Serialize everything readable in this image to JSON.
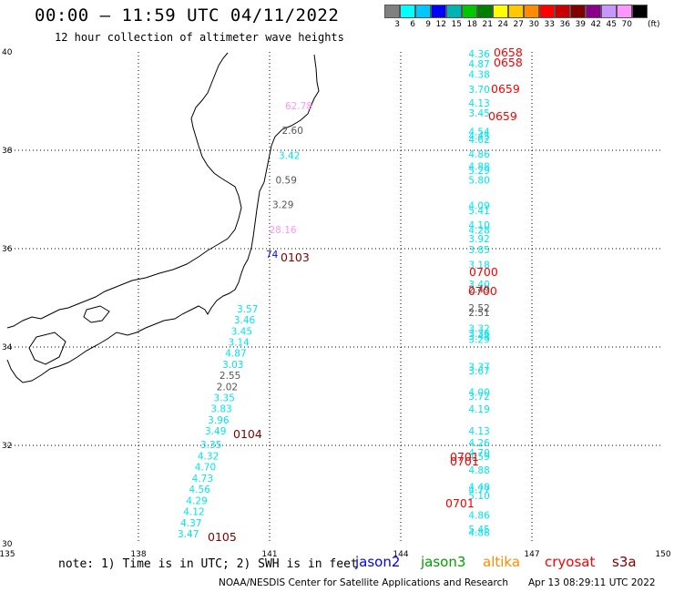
{
  "header": {
    "title": "00:00 – 11:59 UTC 04/11/2022",
    "subtitle": "12 hour collection of altimeter wave heights"
  },
  "color_scale": {
    "unit": "(ft)",
    "swatches": [
      "#808080",
      "#00ffff",
      "#00c8ff",
      "#0000ff",
      "#00b4b4",
      "#00c800",
      "#008000",
      "#ffff00",
      "#ffc800",
      "#ff8c00",
      "#ff0000",
      "#c80000",
      "#800000",
      "#8b008b",
      "#c896ff",
      "#ff96ff",
      "#000000"
    ],
    "labels": [
      "3",
      "6",
      "9",
      "12",
      "15",
      "18",
      "21",
      "24",
      "27",
      "30",
      "33",
      "36",
      "39",
      "42",
      "45",
      "70"
    ]
  },
  "axes": {
    "lon_labels": [
      "135",
      "138",
      "141",
      "144",
      "147",
      "150"
    ],
    "lat_labels": [
      "40",
      "38",
      "36",
      "34",
      "32",
      "30"
    ]
  },
  "tracks": [
    {
      "time": "0658",
      "color": "#ff0000",
      "points": [
        {
          "v": "4.36",
          "c": "#00e5ee",
          "lon": 144.3,
          "lat": 39.96
        },
        {
          "v": "4.87",
          "c": "#00e5ee",
          "lon": 144.3,
          "lat": 39.76
        },
        {
          "v": "4.38",
          "c": "#00e5ee",
          "lon": 144.3,
          "lat": 39.55
        }
      ]
    },
    {
      "time": "0658",
      "color": "#ff0000",
      "points": []
    },
    {
      "time": "0659",
      "color": "#ff0000",
      "points": [
        {
          "v": "3.70",
          "c": "#00e5ee",
          "lon": 144.3,
          "lat": 39.24
        },
        {
          "v": "4.13",
          "c": "#00e5ee",
          "lon": 144.3,
          "lat": 38.96
        },
        {
          "v": "3.45",
          "c": "#00e5ee",
          "lon": 144.3,
          "lat": 38.76
        }
      ]
    },
    {
      "time": "0659",
      "color": "#ff0000",
      "points": [
        {
          "v": "4.54",
          "c": "#00e5ee",
          "lon": 144.3,
          "lat": 38.38
        },
        {
          "v": "4.45",
          "c": "#00e5ee",
          "lon": 144.3,
          "lat": 38.3
        },
        {
          "v": "4.62",
          "c": "#00e5ee",
          "lon": 144.3,
          "lat": 38.22
        },
        {
          "v": "4.86",
          "c": "#00e5ee",
          "lon": 144.3,
          "lat": 37.93
        },
        {
          "v": "4.88",
          "c": "#00e5ee",
          "lon": 144.3,
          "lat": 37.68
        },
        {
          "v": "5.29",
          "c": "#00e5ee",
          "lon": 144.3,
          "lat": 37.59
        },
        {
          "v": "5.80",
          "c": "#00e5ee",
          "lon": 144.3,
          "lat": 37.4
        },
        {
          "v": "4.09",
          "c": "#00e5ee",
          "lon": 144.3,
          "lat": 36.88
        },
        {
          "v": "5.41",
          "c": "#00e5ee",
          "lon": 144.3,
          "lat": 36.78
        },
        {
          "v": "4.10",
          "c": "#00e5ee",
          "lon": 144.3,
          "lat": 36.48
        },
        {
          "v": "4.28",
          "c": "#00e5ee",
          "lon": 144.3,
          "lat": 36.38
        },
        {
          "v": "3.92",
          "c": "#00e5ee",
          "lon": 144.3,
          "lat": 36.2
        },
        {
          "v": "3.85",
          "c": "#00e5ee",
          "lon": 144.3,
          "lat": 35.98
        }
      ]
    },
    {
      "time": "0700",
      "color": "#ff0000",
      "points": [
        {
          "v": "3.18",
          "c": "#00e5ee",
          "lon": 144.3,
          "lat": 35.68
        }
      ]
    },
    {
      "time": "0700",
      "color": "#ff0000",
      "points": [
        {
          "v": "3.40",
          "c": "#00e5ee",
          "lon": 144.3,
          "lat": 35.28
        },
        {
          "v": "2.49",
          "c": "#555555",
          "lon": 144.3,
          "lat": 35.18
        },
        {
          "v": "2.52",
          "c": "#555555",
          "lon": 144.3,
          "lat": 34.8
        },
        {
          "v": "2.51",
          "c": "#555555",
          "lon": 144.3,
          "lat": 34.7
        },
        {
          "v": "3.32",
          "c": "#00e5ee",
          "lon": 144.3,
          "lat": 34.38
        },
        {
          "v": "3.36",
          "c": "#00e5ee",
          "lon": 144.3,
          "lat": 34.28
        },
        {
          "v": "3.44",
          "c": "#00e5ee",
          "lon": 144.3,
          "lat": 34.22
        },
        {
          "v": "3.29",
          "c": "#00e5ee",
          "lon": 144.3,
          "lat": 34.16
        },
        {
          "v": "3.37",
          "c": "#00e5ee",
          "lon": 144.3,
          "lat": 33.6
        },
        {
          "v": "3.67",
          "c": "#00e5ee",
          "lon": 144.3,
          "lat": 33.52
        },
        {
          "v": "4.00",
          "c": "#00e5ee",
          "lon": 144.3,
          "lat": 33.08
        },
        {
          "v": "3.72",
          "c": "#00e5ee",
          "lon": 144.3,
          "lat": 33.0
        },
        {
          "v": "4.19",
          "c": "#00e5ee",
          "lon": 144.3,
          "lat": 32.74
        },
        {
          "v": "4.13",
          "c": "#00e5ee",
          "lon": 144.3,
          "lat": 32.3
        },
        {
          "v": "4.26",
          "c": "#00e5ee",
          "lon": 144.3,
          "lat": 32.06
        }
      ]
    },
    {
      "time": "0701",
      "color": "#ff0000",
      "points": [
        {
          "v": "4.70",
          "c": "#00e5ee",
          "lon": 144.3,
          "lat": 31.85
        },
        {
          "v": "4.59",
          "c": "#00e5ee",
          "lon": 144.3,
          "lat": 31.78
        },
        {
          "v": "4.88",
          "c": "#00e5ee",
          "lon": 144.3,
          "lat": 31.5
        }
      ]
    },
    {
      "time": "0701",
      "color": "#ff0000",
      "points": []
    },
    {
      "time": "0701",
      "color": "#ff0000",
      "points": [
        {
          "v": "4.48",
          "c": "#00e5ee",
          "lon": 144.3,
          "lat": 31.16
        },
        {
          "v": "4.77",
          "c": "#00e5ee",
          "lon": 144.3,
          "lat": 31.1
        },
        {
          "v": "5.10",
          "c": "#00e5ee",
          "lon": 144.3,
          "lat": 30.98
        },
        {
          "v": "4.86",
          "c": "#00e5ee",
          "lon": 144.3,
          "lat": 30.58
        },
        {
          "v": "5.45",
          "c": "#00e5ee",
          "lon": 144.3,
          "lat": 30.3
        },
        {
          "v": "4.88",
          "c": "#00e5ee",
          "lon": 144.3,
          "lat": 30.23
        }
      ]
    }
  ],
  "tracks_west": [
    {
      "time": "0103",
      "color": "#800000",
      "points": [
        {
          "v": "62.78",
          "c": "#ff96ff"
        },
        {
          "v": "2.60",
          "c": "#555555"
        },
        {
          "v": "3.42",
          "c": "#00e5ee"
        },
        {
          "v": "0.59",
          "c": "#555555"
        },
        {
          "v": "3.29",
          "c": "#555555"
        },
        {
          "v": "28.16",
          "c": "#ff96ff"
        },
        {
          "v": "74",
          "c": "#0000ff"
        }
      ]
    },
    {
      "time": "0104",
      "color": "#800000",
      "points": [
        {
          "v": "3.57",
          "c": "#00e5ee"
        },
        {
          "v": "3.46",
          "c": "#00e5ee"
        },
        {
          "v": "3.45",
          "c": "#00e5ee"
        },
        {
          "v": "3.14",
          "c": "#00e5ee"
        },
        {
          "v": "4.87",
          "c": "#00e5ee"
        },
        {
          "v": "3.03",
          "c": "#00e5ee"
        },
        {
          "v": "2.55",
          "c": "#555555"
        },
        {
          "v": "2.02",
          "c": "#555555"
        },
        {
          "v": "3.35",
          "c": "#00e5ee"
        },
        {
          "v": "3.83",
          "c": "#00e5ee"
        },
        {
          "v": "3.96",
          "c": "#00e5ee"
        },
        {
          "v": "3.49",
          "c": "#00e5ee"
        }
      ]
    },
    {
      "time": "0105",
      "color": "#800000",
      "points": [
        {
          "v": "3.35",
          "c": "#00e5ee"
        },
        {
          "v": "4.32",
          "c": "#00e5ee"
        },
        {
          "v": "4.70",
          "c": "#00e5ee"
        },
        {
          "v": "4.73",
          "c": "#00e5ee"
        },
        {
          "v": "4.56",
          "c": "#00e5ee"
        },
        {
          "v": "4.29",
          "c": "#00e5ee"
        },
        {
          "v": "4.12",
          "c": "#00e5ee"
        },
        {
          "v": "4.37",
          "c": "#00e5ee"
        },
        {
          "v": "3.47",
          "c": "#00e5ee"
        }
      ]
    }
  ],
  "note": "note: 1) Time is in UTC; 2) SWH is in feet",
  "satellites": [
    {
      "name": "jason2",
      "color": "#0000ff"
    },
    {
      "name": "jason3",
      "color": "#00a000"
    },
    {
      "name": "altika",
      "color": "#ff8c00"
    },
    {
      "name": "cryosat",
      "color": "#ff0000"
    },
    {
      "name": "s3a",
      "color": "#800000"
    }
  ],
  "footer": "NOAA/NESDIS Center for Satellite Applications and Research",
  "footer_date": "Apr 13 08:29:11 UTC 2022"
}
